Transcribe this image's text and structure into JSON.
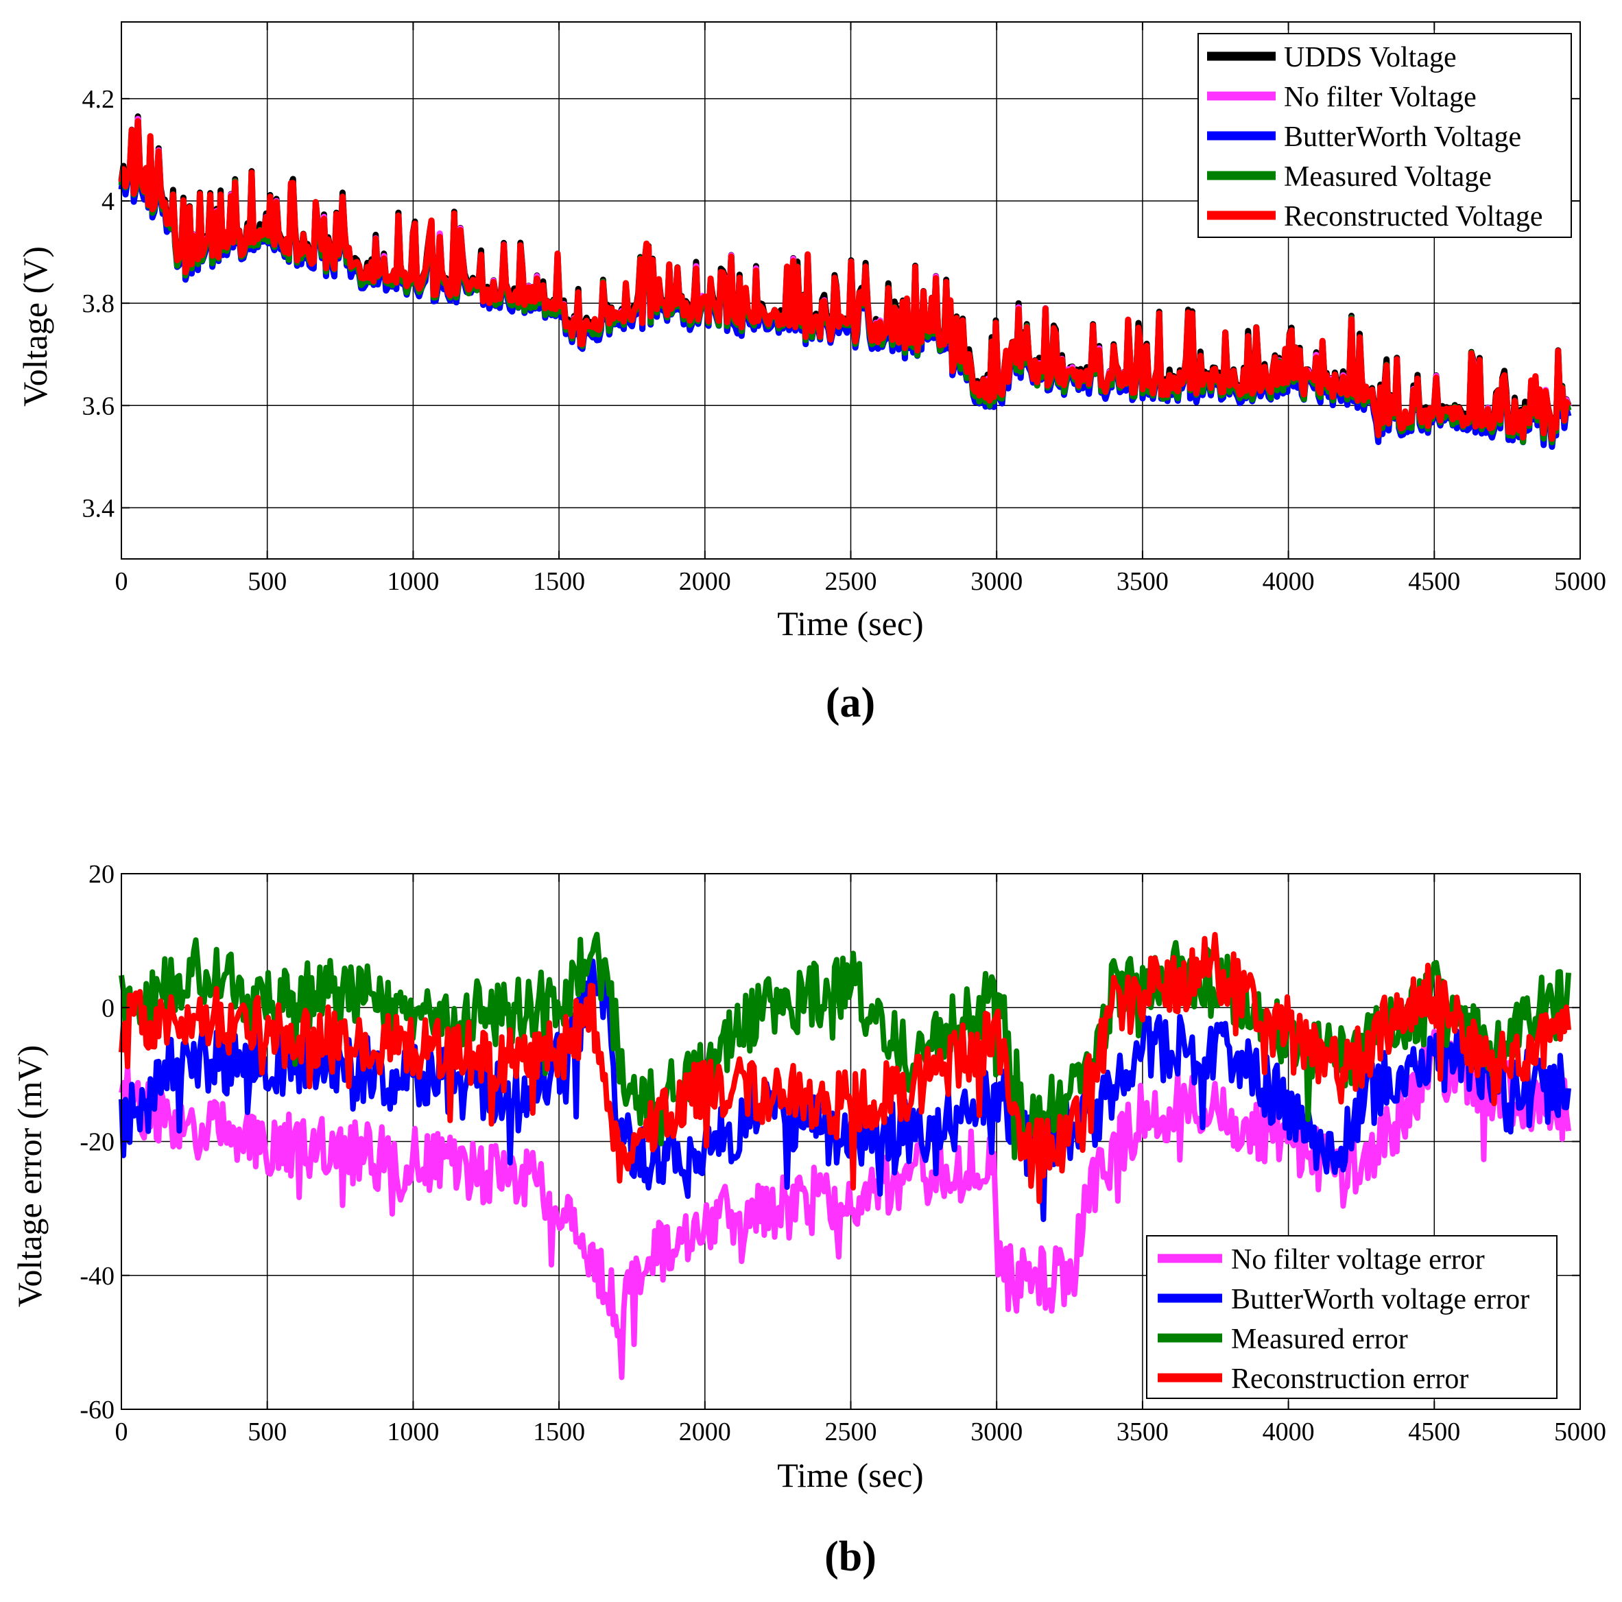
{
  "chart_data": [
    {
      "type": "line",
      "panel_label": "(a)",
      "xlabel": "Time (sec)",
      "ylabel": "Voltage (V)",
      "xlim": [
        0,
        5000
      ],
      "ylim": [
        3.3,
        4.35
      ],
      "xticks": [
        0,
        500,
        1000,
        1500,
        2000,
        2500,
        3000,
        3500,
        4000,
        4500,
        5000
      ],
      "xtick_labels": [
        "0",
        "500",
        "1000",
        "1500",
        "2000",
        "2500",
        "3000",
        "3500",
        "4000",
        "4500",
        "5000"
      ],
      "yticks": [
        3.4,
        3.6,
        3.8,
        4.0,
        4.2
      ],
      "ytick_labels": [
        "3.4",
        "3.6",
        "3.8",
        "4",
        "4.2"
      ],
      "grid": true,
      "legend_position": "top-right",
      "series": [
        {
          "name": "UDDS Voltage",
          "color": "#000000",
          "offset": 0.006
        },
        {
          "name": "No filter Voltage",
          "color": "#ff33ff",
          "offset": 0.0
        },
        {
          "name": "ButterWorth Voltage",
          "color": "#0000ff",
          "offset": -0.012
        },
        {
          "name": "Measured Voltage",
          "color": "#008000",
          "offset": -0.004
        },
        {
          "name": "Reconstructed Voltage",
          "color": "#ff0000",
          "offset": 0.002
        }
      ],
      "trend": {
        "x": [
          0,
          150,
          200,
          300,
          500,
          700,
          1000,
          1300,
          1500,
          1550,
          1700,
          2000,
          2500,
          2800,
          2950,
          3100,
          3500,
          4000,
          4250,
          4300,
          4500,
          4700,
          4900,
          4960
        ],
        "y": [
          4.05,
          3.98,
          3.87,
          3.9,
          3.93,
          3.88,
          3.84,
          3.82,
          3.8,
          3.72,
          3.78,
          3.78,
          3.74,
          3.72,
          3.62,
          3.66,
          3.64,
          3.64,
          3.63,
          3.56,
          3.58,
          3.56,
          3.55,
          3.58
        ]
      }
    },
    {
      "type": "line",
      "panel_label": "(b)",
      "xlabel": "Time (sec)",
      "ylabel": "Voltage error (mV)",
      "xlim": [
        0,
        5000
      ],
      "ylim": [
        -60,
        20
      ],
      "xticks": [
        0,
        500,
        1000,
        1500,
        2000,
        2500,
        3000,
        3500,
        4000,
        4500,
        5000
      ],
      "xtick_labels": [
        "0",
        "500",
        "1000",
        "1500",
        "2000",
        "2500",
        "3000",
        "3500",
        "4000",
        "4500",
        "5000"
      ],
      "yticks": [
        -60,
        -40,
        -20,
        0,
        20
      ],
      "ytick_labels": [
        "-60",
        "-40",
        "-20",
        "0",
        "20"
      ],
      "grid": true,
      "legend_position": "bottom-right",
      "series": [
        {
          "name": "No filter voltage error",
          "color": "#ff33ff",
          "x": [
            0,
            100,
            200,
            500,
            1000,
            1400,
            1550,
            1700,
            1800,
            2000,
            2200,
            2500,
            2800,
            2990,
            3000,
            3100,
            3270,
            3300,
            3500,
            3700,
            4000,
            4200,
            4300,
            4500,
            4700,
            4960
          ],
          "y": [
            -13,
            -15,
            -18,
            -20,
            -23,
            -26,
            -33,
            -45,
            -38,
            -32,
            -30,
            -28,
            -24,
            -22,
            -40,
            -41,
            -40,
            -28,
            -16,
            -14,
            -20,
            -25,
            -22,
            -8,
            -12,
            -15
          ]
        },
        {
          "name": "ButterWorth voltage error",
          "color": "#0000ff",
          "x": [
            0,
            100,
            200,
            500,
            1000,
            1400,
            1550,
            1650,
            1700,
            1800,
            2000,
            2200,
            2400,
            2500,
            2800,
            3000,
            3100,
            3300,
            3500,
            3800,
            4000,
            4150,
            4300,
            4500,
            4700,
            4960
          ],
          "y": [
            -18,
            -12,
            -8,
            -8,
            -10,
            -14,
            -5,
            8,
            -18,
            -22,
            -22,
            -15,
            -18,
            -20,
            -18,
            -12,
            -20,
            -18,
            -6,
            -6,
            -15,
            -22,
            -12,
            -6,
            -10,
            -12
          ]
        },
        {
          "name": "Measured error",
          "color": "#008000",
          "x": [
            0,
            100,
            250,
            500,
            800,
            1000,
            1400,
            1550,
            1600,
            1650,
            1750,
            2000,
            2200,
            2400,
            2500,
            2700,
            2950,
            3000,
            3100,
            3300,
            3400,
            3600,
            3800,
            4000,
            4200,
            4500,
            4700,
            4960
          ],
          "y": [
            0,
            1,
            6,
            1,
            3,
            -2,
            0,
            3,
            9,
            5,
            -15,
            -8,
            0,
            2,
            4,
            -8,
            0,
            2,
            -16,
            -12,
            3,
            5,
            3,
            -4,
            -8,
            2,
            -6,
            3
          ]
        },
        {
          "name": "Reconstruction error",
          "color": "#ff0000",
          "x": [
            0,
            100,
            250,
            500,
            1000,
            1400,
            1550,
            1600,
            1700,
            2000,
            2500,
            2700,
            2950,
            3000,
            3100,
            3250,
            3400,
            3600,
            3750,
            3900,
            4100,
            4200,
            4450,
            4700,
            4960
          ],
          "y": [
            -2,
            -1,
            0,
            -4,
            -6,
            -8,
            -5,
            2,
            -22,
            -12,
            -14,
            -12,
            -6,
            -3,
            -22,
            -20,
            0,
            4,
            6,
            -1,
            -6,
            -10,
            3,
            -8,
            -4
          ]
        }
      ]
    }
  ]
}
